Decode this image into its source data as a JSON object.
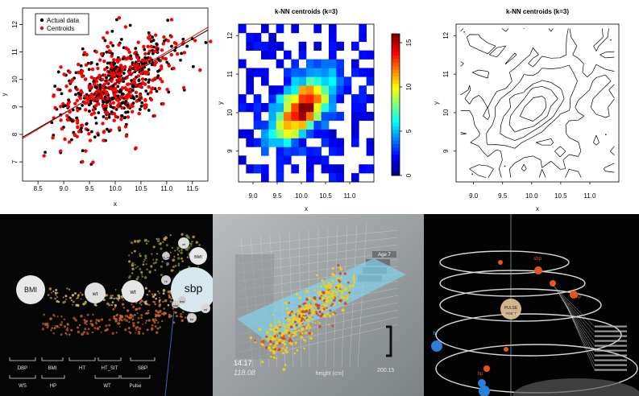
{
  "chart_data": [
    {
      "type": "scatter",
      "xlabel": "x",
      "ylabel": "y",
      "xlim": [
        8.2,
        11.8
      ],
      "ylim": [
        6.3,
        12.6
      ],
      "xticks": [
        "8.5",
        "9.0",
        "9.5",
        "10.0",
        "10.5",
        "11.0",
        "11.5"
      ],
      "yticks": [
        "7",
        "8",
        "9",
        "10",
        "11",
        "12"
      ],
      "legend_position": "top-left",
      "series": [
        {
          "name": "Actual data",
          "color": "#000000"
        },
        {
          "name": "Centroids",
          "color": "#ff0000"
        }
      ],
      "fit_lines": [
        {
          "color": "#000000",
          "x": [
            8.2,
            11.8
          ],
          "y": [
            7.9,
            11.8
          ]
        },
        {
          "color": "#ff0000",
          "x": [
            8.2,
            11.8
          ],
          "y": [
            7.85,
            11.9
          ]
        }
      ]
    },
    {
      "type": "heatmap",
      "title": "k-NN centroids (k=3)",
      "xlabel": "x",
      "ylabel": "y",
      "xlim": [
        8.7,
        11.5
      ],
      "ylim": [
        8.2,
        12.3
      ],
      "xticks": [
        "9.0",
        "9.5",
        "10.0",
        "10.5",
        "11.0"
      ],
      "yticks": [
        "9",
        "10",
        "11",
        "12"
      ],
      "colorbar_ticks": [
        "0",
        "5",
        "10",
        "15"
      ],
      "colorbar_range": [
        0,
        16
      ]
    },
    {
      "type": "contour",
      "title": "k-NN centroids (k=3)",
      "xlabel": "x",
      "ylabel": "y",
      "xlim": [
        8.7,
        11.5
      ],
      "ylim": [
        8.2,
        12.3
      ],
      "xticks": [
        "9.0",
        "9.5",
        "10.0",
        "10.5",
        "11.0"
      ],
      "yticks": [
        "9",
        "10",
        "11",
        "12"
      ]
    }
  ],
  "vr1": {
    "bubbles": [
      "BMI",
      "wt",
      "wt",
      "wt",
      "BMI",
      "sbp",
      "ht_sit",
      "bmi",
      "ht",
      "wt",
      "sbp",
      "bp"
    ],
    "center_label": "sbp",
    "bottom_labels": [
      "DBP",
      "BMI",
      "HT",
      "HT_SIT",
      "SBP",
      "WS",
      "HP",
      "WT",
      "Pulse"
    ]
  },
  "vr2": {
    "tags": [
      "Age 7"
    ],
    "axis_values": [
      "14.17",
      "118.08",
      "200.15"
    ],
    "axis_label": "height (cm)"
  },
  "vr3": {
    "center_label": "PULSE",
    "center_sub": "AGE 7",
    "planet_labels": [
      "sbp",
      "dbp",
      "ht",
      "hp"
    ]
  },
  "colors": {
    "actual": "#000000",
    "centroid": "#ff0000",
    "vr_cyan": "#6fd3f0",
    "vr_orange": "#e8541c"
  }
}
